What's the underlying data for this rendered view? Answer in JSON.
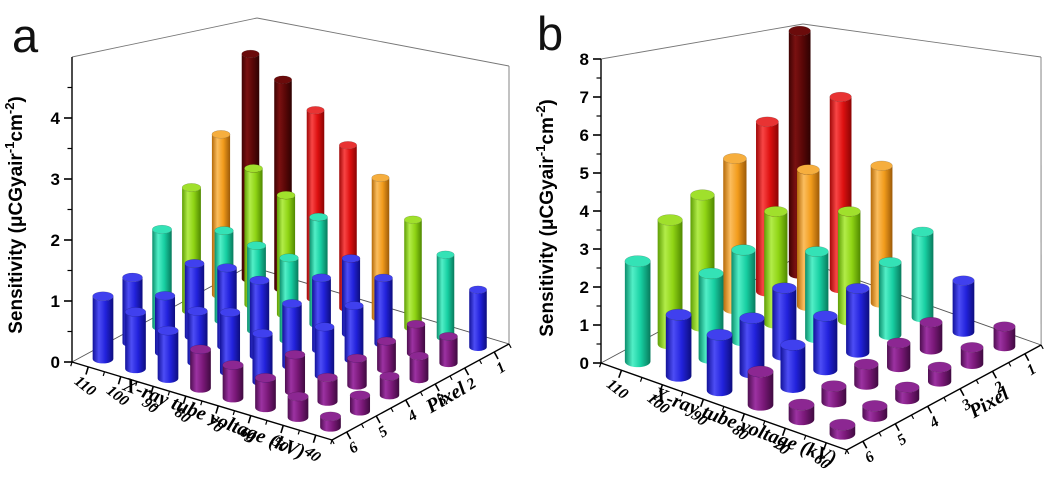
{
  "figure": {
    "description": "Two-panel 3D cylinder bar chart of detector sensitivity vs X-ray tube voltage and pixel",
    "background": "#ffffff"
  },
  "colors": {
    "purple": {
      "stops": [
        "#4E0E50",
        "#9C32A2",
        "#7A1878",
        "#3F0A40"
      ],
      "top": "#8C2792"
    },
    "blue": {
      "stops": [
        "#12129A",
        "#4D4DF5",
        "#2222DC",
        "#0D0D7E"
      ],
      "top": "#4040EE"
    },
    "cyan": {
      "stops": [
        "#0B8E6C",
        "#52EFC7",
        "#17CFA2",
        "#087A5C"
      ],
      "top": "#34E2B6"
    },
    "green": {
      "stops": [
        "#5E9E04",
        "#B2EC49",
        "#8FD414",
        "#4F8800"
      ],
      "top": "#A0E02C"
    },
    "orange": {
      "stops": [
        "#B56A0A",
        "#FBBD5E",
        "#F29C1C",
        "#9C5A08"
      ],
      "top": "#F6AE3E"
    },
    "red": {
      "stops": [
        "#A00808",
        "#F84545",
        "#DD1010",
        "#8B0404"
      ],
      "top": "#E83333"
    },
    "darkred": {
      "stops": [
        "#3F0303",
        "#7A1111",
        "#5A0707",
        "#2E0202"
      ],
      "top": "#6B0B0B"
    }
  },
  "color_scale": {
    "a": [
      [
        0.7,
        "purple"
      ],
      [
        1.6,
        "blue"
      ],
      [
        2.3,
        "cyan"
      ],
      [
        3.0,
        "green"
      ],
      [
        3.5,
        "orange"
      ],
      [
        4.3,
        "red"
      ],
      [
        99,
        "darkred"
      ]
    ],
    "b": [
      [
        1.15,
        "purple"
      ],
      [
        2.3,
        "blue"
      ],
      [
        3.4,
        "cyan"
      ],
      [
        4.5,
        "green"
      ],
      [
        5.5,
        "orange"
      ],
      [
        6.9,
        "red"
      ],
      [
        99,
        "darkred"
      ]
    ]
  },
  "panels": [
    {
      "id": "a",
      "letter": "a",
      "z_title_parts": {
        "pre": "Sensitivity (μCGyair",
        "sup1": "-1",
        "mid": "cm",
        "sup2": "-2",
        "post": ")"
      },
      "chart_data": {
        "type": "bar",
        "subtype": "3d-cylinders",
        "title": "",
        "x_label": "X-ray tube voltage (kV)",
        "x_categories": [
          110,
          100,
          90,
          80,
          70,
          60,
          50,
          40
        ],
        "y_label": "Pixel",
        "y_categories": [
          1,
          2,
          3,
          4,
          5,
          6
        ],
        "z_label": "Sensitivity (μCGyair-1cm-2)",
        "zlim": [
          0,
          5
        ],
        "z_ticks": [
          0,
          1,
          2,
          3,
          4
        ],
        "grid": false,
        "legend": false,
        "values": [
          [
            4.9,
            3.3,
            2.4,
            1.8,
            1.15,
            1.05
          ],
          [
            4.55,
            2.8,
            1.75,
            1.35,
            1.0,
            0.95
          ],
          [
            4.1,
            2.45,
            1.65,
            1.45,
            0.9,
            0.8
          ],
          [
            3.55,
            2.2,
            1.6,
            1.4,
            1.05,
            0.65
          ],
          [
            3.05,
            1.55,
            1.4,
            1.15,
            0.85,
            0.55
          ],
          [
            2.35,
            1.35,
            1.05,
            0.9,
            0.65,
            0.5
          ],
          [
            1.8,
            0.6,
            0.55,
            0.5,
            0.42,
            0.35
          ],
          [
            1.25,
            0.55,
            0.45,
            0.35,
            0.28,
            0.18
          ]
        ]
      }
    },
    {
      "id": "b",
      "letter": "b",
      "z_title_parts": {
        "pre": "Sensitivity (μCGyair",
        "sup1": "-1",
        "mid": "cm",
        "sup2": "-2",
        "post": ")"
      },
      "chart_data": {
        "type": "bar",
        "subtype": "3d-cylinders",
        "title": "",
        "x_label": "X-ray tube voltage (kV)",
        "x_categories": [
          110,
          100,
          90,
          80,
          70,
          60
        ],
        "y_label": "Pixel",
        "y_categories": [
          1,
          2,
          3,
          4,
          5,
          6
        ],
        "z_label": "Sensitivity (μCGyair-1cm-2)",
        "zlim": [
          0,
          8
        ],
        "z_ticks": [
          0,
          1,
          2,
          3,
          4,
          5,
          6,
          7,
          8
        ],
        "grid": false,
        "legend": false,
        "values": [
          [
            8.5,
            5.6,
            4.7,
            3.9,
            3.5,
            2.7
          ],
          [
            6.7,
            4.5,
            3.5,
            2.7,
            2.4,
            1.65
          ],
          [
            4.8,
            3.6,
            2.7,
            2.0,
            1.55,
            1.5
          ],
          [
            3.0,
            2.4,
            2.0,
            1.6,
            1.2,
            0.9
          ],
          [
            1.8,
            0.9,
            0.75,
            0.6,
            0.45,
            0.4
          ],
          [
            0.7,
            0.55,
            0.45,
            0.35,
            0.3,
            0.25
          ]
        ]
      }
    }
  ]
}
